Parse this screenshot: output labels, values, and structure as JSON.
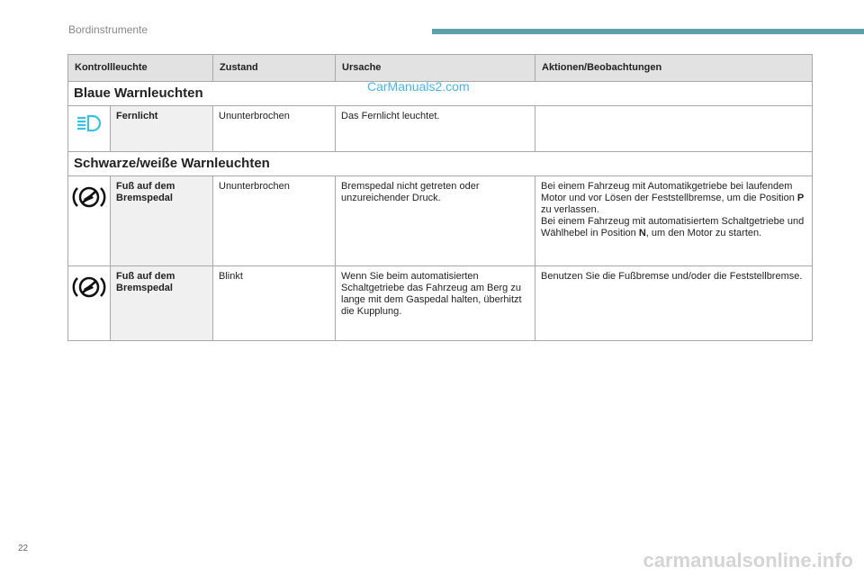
{
  "header": {
    "title": "Bordinstrumente",
    "accent": "#5e9fac"
  },
  "table": {
    "columns": [
      "Kontrollleuchte",
      "Zustand",
      "Ursache",
      "Aktionen/Beobachtungen"
    ],
    "sections": [
      {
        "title": "Blaue Warnleuchten",
        "rows": [
          {
            "icon": "high-beam-icon",
            "name": "Fernlicht",
            "state": "Ununterbrochen",
            "cause": "Das Fernlicht leuchtet.",
            "action": ""
          }
        ]
      },
      {
        "title": "Schwarze/weiße Warnleuchten",
        "rows": [
          {
            "icon": "foot-on-brake-icon",
            "name": "Fuß auf dem Bremspedal",
            "state": "Ununterbrochen",
            "cause": "Bremspedal nicht getreten oder unzureichender Druck.",
            "action_parts": [
              "Bei einem Fahrzeug mit Automatikgetriebe bei laufendem Motor und vor Lösen der Feststellbremse, um die Position ",
              "P",
              " zu verlassen.",
              "Bei einem Fahrzeug mit automatisiertem Schaltgetriebe und Wählhebel in Position ",
              "N",
              ", um den Motor zu starten."
            ]
          },
          {
            "icon": "foot-on-brake-icon",
            "name": "Fuß auf dem Bremspedal",
            "state": "Blinkt",
            "cause": "Wenn Sie beim automatisierten Schaltgetriebe das Fahrzeug am Berg zu lange mit dem Gaspedal halten, überhitzt die Kupplung.",
            "action": "Benutzen Sie die Fußbremse und/oder die Feststellbremse."
          }
        ]
      }
    ]
  },
  "watermark": "CarManuals2.com",
  "page_number": "22",
  "footer_watermark": "carmanualsonline.info"
}
